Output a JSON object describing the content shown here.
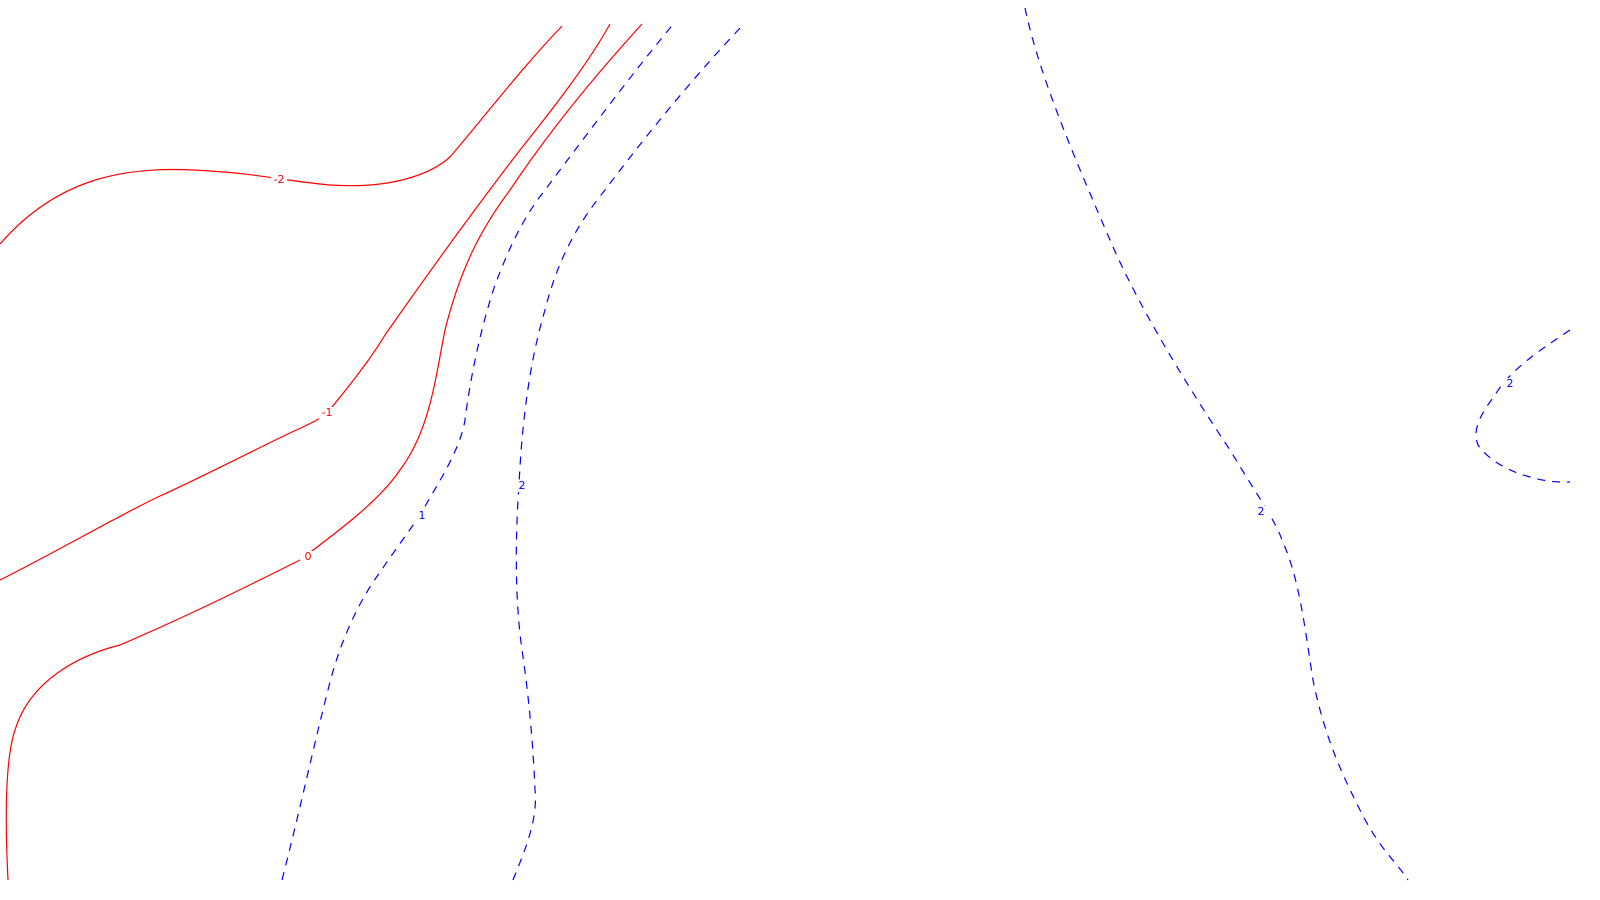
{
  "chart_data": {
    "type": "contour",
    "title": "",
    "xlabel": "",
    "ylabel": "",
    "grid": false,
    "legend": "none",
    "colors": {
      "negative": "#ff0000",
      "positive": "#0000ff"
    },
    "styles": {
      "negative": "solid",
      "positive": "dashed"
    },
    "contours": [
      {
        "level": -2,
        "label": "-2",
        "sign": "negative"
      },
      {
        "level": -1,
        "label": "-1",
        "sign": "negative"
      },
      {
        "level": 0,
        "label": "0",
        "sign": "negative"
      },
      {
        "level": 1,
        "label": "1",
        "sign": "positive"
      },
      {
        "level": 2,
        "label": "2",
        "sign": "positive"
      },
      {
        "level": 2,
        "label": "2",
        "sign": "positive"
      },
      {
        "level": 2,
        "label": "2",
        "sign": "positive"
      }
    ]
  }
}
